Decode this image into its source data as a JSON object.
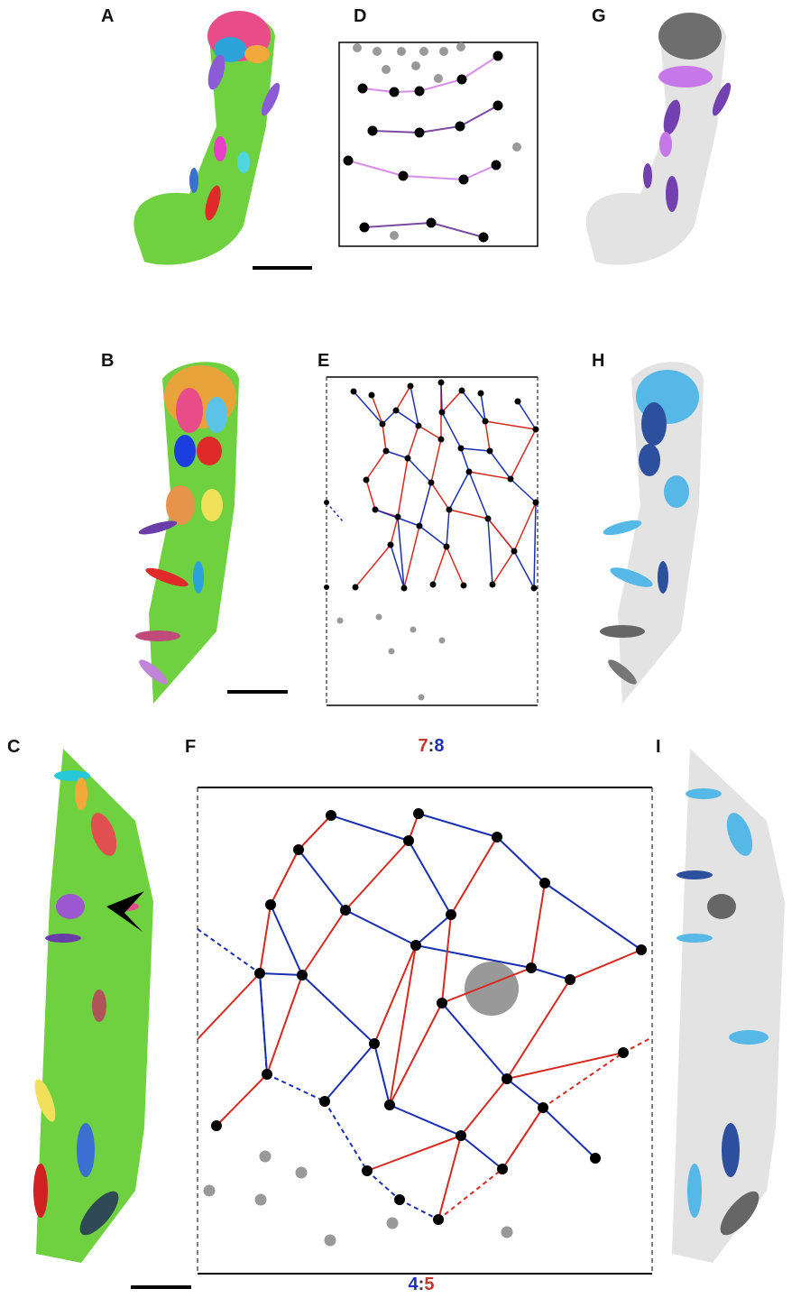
{
  "panel_labels": [
    "A",
    "B",
    "C",
    "D",
    "E",
    "F",
    "G",
    "H",
    "I"
  ],
  "ratio_E": {
    "left": "7",
    "sep": ":",
    "right": "8"
  },
  "ratio_F": {
    "left": "4",
    "sep": ":",
    "right": "5"
  }
}
